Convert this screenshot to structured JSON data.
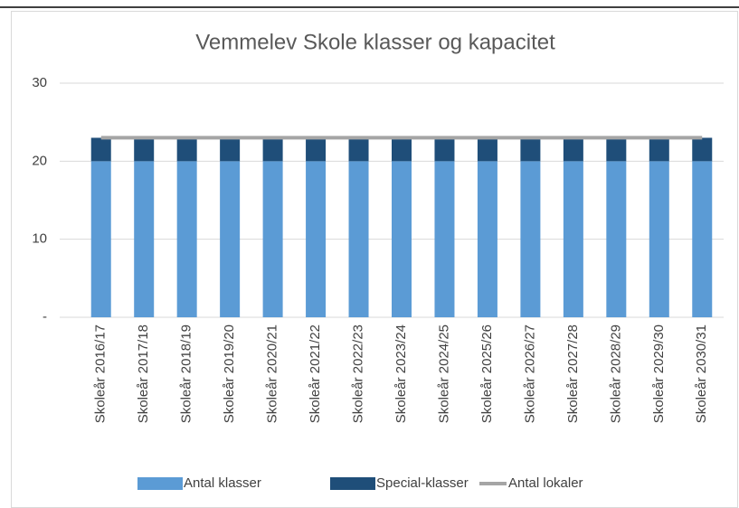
{
  "chart_data": {
    "type": "stacked_bar_line",
    "title": "Vemmelev Skole klasser og kapacitet",
    "categories": [
      "Skoleår 2016/17",
      "Skoleår 2017/18",
      "Skoleår 2018/19",
      "Skoleår 2019/20",
      "Skoleår 2020/21",
      "Skoleår 2021/22",
      "Skoleår 2022/23",
      "Skoleår 2023/24",
      "Skoleår 2024/25",
      "Skoleår 2025/26",
      "Skoleår 2026/27",
      "Skoleår 2027/28",
      "Skoleår 2028/29",
      "Skoleår 2029/30",
      "Skoleår 2030/31"
    ],
    "series": [
      {
        "name": "Antal klasser",
        "color": "#5b9bd5",
        "kind": "bar",
        "values": [
          20,
          20,
          20,
          20,
          20,
          20,
          20,
          20,
          20,
          20,
          20,
          20,
          20,
          20,
          20
        ]
      },
      {
        "name": "Special-klasser",
        "color": "#1f4e79",
        "kind": "bar",
        "values": [
          3,
          3,
          3,
          3,
          3,
          3,
          3,
          3,
          3,
          3,
          3,
          3,
          3,
          3,
          3
        ]
      },
      {
        "name": "Antal lokaler",
        "color": "#a5a5a5",
        "kind": "line",
        "values": [
          23,
          23,
          23,
          23,
          23,
          23,
          23,
          23,
          23,
          23,
          23,
          23,
          23,
          23,
          23
        ]
      }
    ],
    "ylim": [
      0,
      30
    ],
    "yticks": [
      {
        "value": 0,
        "label": "-"
      },
      10,
      20,
      30
    ],
    "grid": true,
    "legend": "bottom"
  }
}
